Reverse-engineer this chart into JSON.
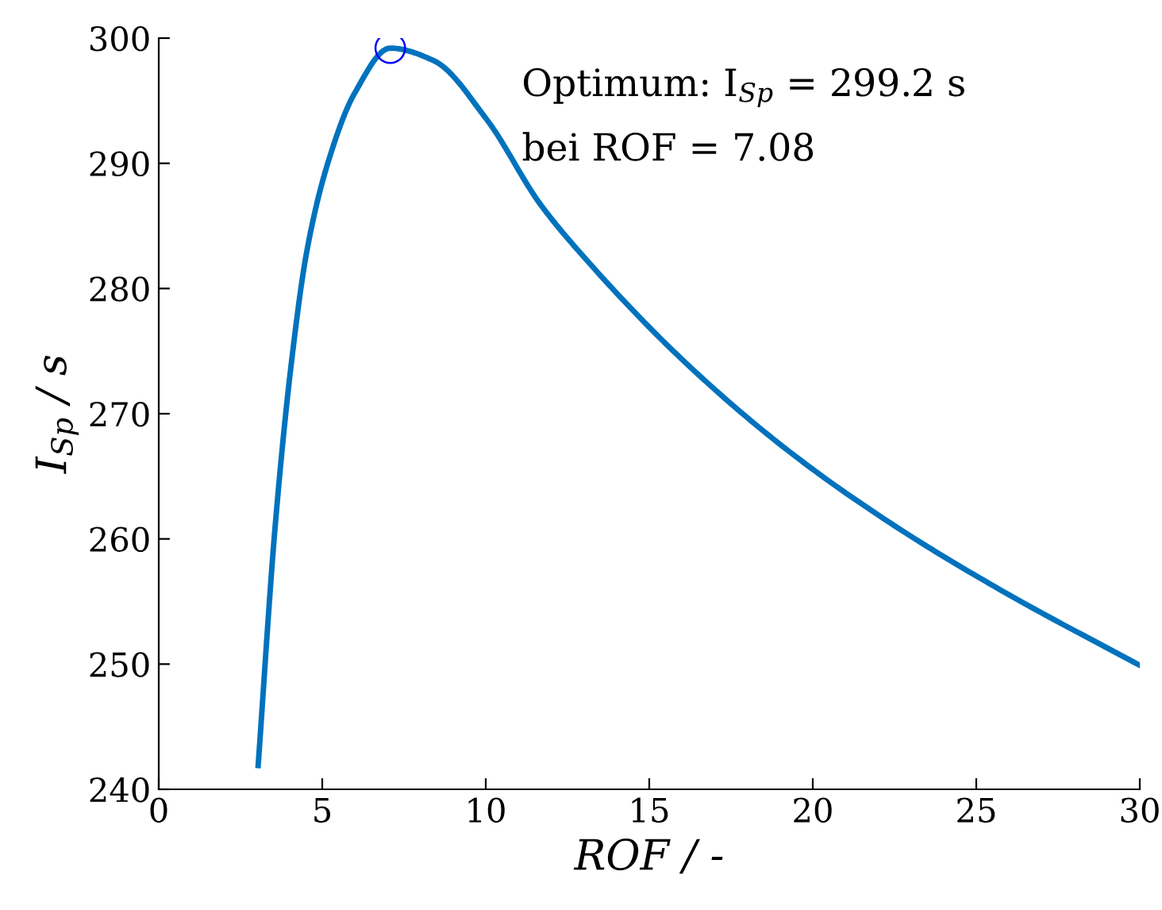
{
  "chart_data": {
    "type": "line",
    "xlabel": "ROF / -",
    "ylabel": "I$_{Sp}$ / s",
    "annotations": [
      "Optimum: I$_{Sp}$ = 299.2 s",
      "bei ROF = 7.08"
    ],
    "xlim": [
      0,
      30
    ],
    "ylim": [
      240,
      300
    ],
    "xticks": [
      0,
      5,
      10,
      15,
      20,
      25,
      30
    ],
    "yticks": [
      240,
      250,
      260,
      270,
      280,
      290,
      300
    ],
    "grid": false,
    "series": [
      {
        "color": "#0072bd",
        "x": [
          3.04,
          3.56,
          4.04,
          4.53,
          5.18,
          5.99,
          7.08,
          8.41,
          10.03,
          11.65,
          12.94,
          16.18,
          19.42,
          22.65,
          25.89,
          30
        ],
        "values": [
          241.9,
          261.0,
          273.7,
          283.0,
          290.1,
          295.6,
          299.2,
          298.2,
          293.5,
          286.8,
          282.7,
          273.9,
          266.7,
          260.8,
          255.7,
          249.9
        ]
      },
      {
        "type": "scatter",
        "marker": "circle",
        "color": "#0000ff",
        "x": [
          7.08
        ],
        "values": [
          299.2
        ]
      }
    ]
  }
}
